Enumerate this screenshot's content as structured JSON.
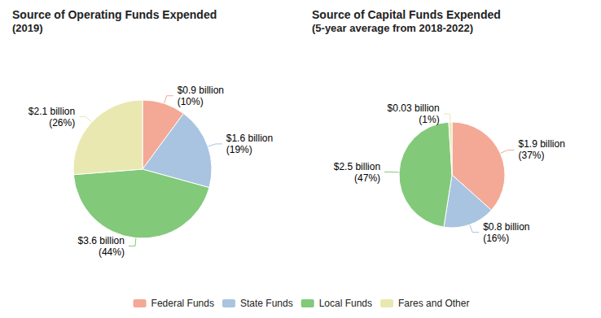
{
  "chart_data": [
    {
      "type": "pie",
      "title": "Source of Operating Funds Expended",
      "subtitle": "(2019)",
      "categories": [
        "Federal Funds",
        "State Funds",
        "Local Funds",
        "Fares and Other"
      ],
      "values": [
        10,
        19,
        44,
        26
      ],
      "value_labels": [
        "$0.9 billion\n(10%)",
        "$1.6 billion\n(19%)",
        "$3.6 billion\n(44%)",
        "$2.1 billion\n(26%)"
      ],
      "colors": [
        "#F4A896",
        "#A8C4E0",
        "#82C97A",
        "#E8E8B0"
      ],
      "data_labels": true,
      "legend": "bottom"
    },
    {
      "type": "pie",
      "title": "Source of Capital Funds Expended",
      "subtitle": "(5-year average from 2018-2022)",
      "categories": [
        "Federal Funds",
        "State Funds",
        "Local Funds",
        "Fares and Other"
      ],
      "values": [
        37,
        16,
        47,
        1
      ],
      "value_labels": [
        "$1.9 billion\n(37%)",
        "$0.8 billion\n(16%)",
        "$2.5 billion\n(47%)",
        "$0.03 billion\n(1%)"
      ],
      "colors": [
        "#F4A896",
        "#A8C4E0",
        "#82C97A",
        "#E8E8B0"
      ],
      "data_labels": true,
      "legend": "bottom"
    }
  ]
}
